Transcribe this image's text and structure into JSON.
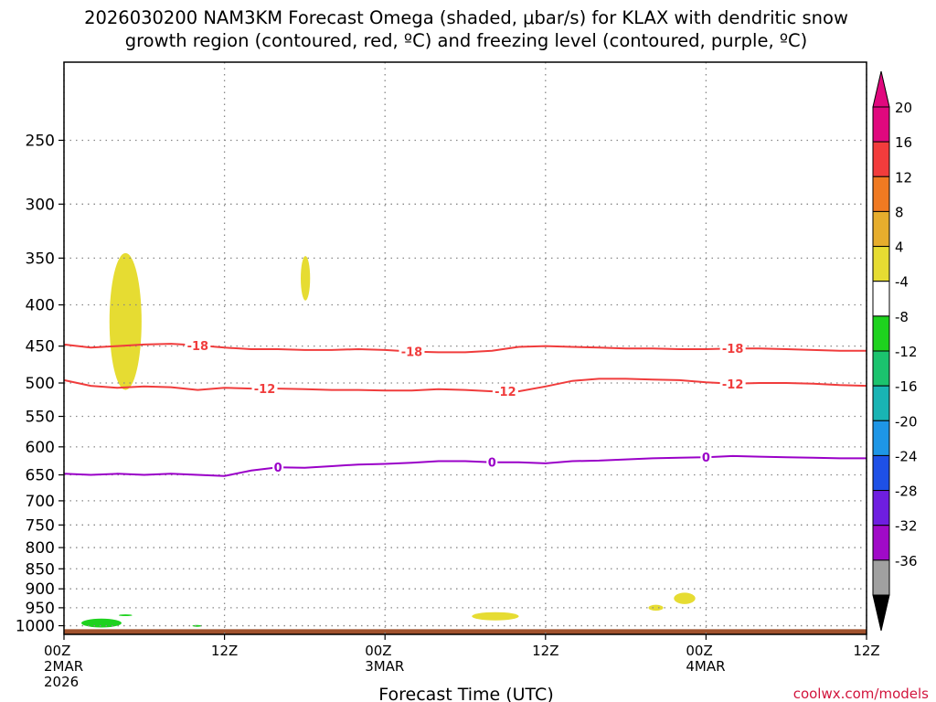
{
  "chart_data": {
    "type": "area",
    "title_line1": "2026030200 NAM3KM Forecast Omega (shaded, μbar/s) for KLAX with dendritic snow",
    "title_line2": "growth region (contoured, red, ºC) and freezing level (contoured, purple, ºC)",
    "xlabel": "Forecast Time (UTC)",
    "credit": "coolwx.com/models",
    "x_range_hours": [
      0,
      60
    ],
    "x_ticks": [
      {
        "hour": 0,
        "labels": [
          "00Z",
          "2MAR",
          "2026"
        ]
      },
      {
        "hour": 12,
        "labels": [
          "12Z"
        ]
      },
      {
        "hour": 24,
        "labels": [
          "00Z",
          "3MAR"
        ]
      },
      {
        "hour": 36,
        "labels": [
          "12Z"
        ]
      },
      {
        "hour": 48,
        "labels": [
          "00Z",
          "4MAR"
        ]
      },
      {
        "hour": 60,
        "labels": [
          "12Z"
        ]
      }
    ],
    "y_scale": "log",
    "y_range_hpa": [
      1025,
      200
    ],
    "y_ticks": [
      250,
      300,
      350,
      400,
      450,
      500,
      550,
      600,
      650,
      700,
      750,
      800,
      850,
      900,
      950,
      1000
    ],
    "grid": true,
    "colorbar": {
      "placement": "right",
      "levels": [
        {
          "label": "20",
          "color": "#e0087e"
        },
        {
          "label": "16",
          "color": "#f23c3c"
        },
        {
          "label": "12",
          "color": "#f07a22"
        },
        {
          "label": "8",
          "color": "#e6ad2d"
        },
        {
          "label": "4",
          "color": "#e6dc32"
        },
        {
          "label": "-4",
          "color": "#ffffff"
        },
        {
          "label": "-8",
          "color": "#1ed21e"
        },
        {
          "label": "-12",
          "color": "#1bc36e"
        },
        {
          "label": "-16",
          "color": "#19b4b4"
        },
        {
          "label": "-20",
          "color": "#1e96e6"
        },
        {
          "label": "-24",
          "color": "#1e50e6"
        },
        {
          "label": "-28",
          "color": "#6e1ee0"
        },
        {
          "label": "-32",
          "color": "#a00ac8"
        },
        {
          "label": "-36",
          "color": "#a0a0a0"
        }
      ],
      "top_arrow_color": "#e0087e",
      "bottom_arrow_color": "#000000"
    },
    "contours": [
      {
        "value": "-18",
        "color": "#f03c3c",
        "hours": [
          0,
          2,
          4,
          6,
          8,
          10,
          12,
          14,
          16,
          18,
          20,
          22,
          24,
          26,
          28,
          30,
          32,
          34,
          36,
          38,
          40,
          42,
          44,
          46,
          48,
          50,
          52,
          54,
          56,
          58,
          60
        ],
        "pressure": [
          448,
          452,
          450,
          448,
          447,
          449,
          452,
          454,
          454,
          455,
          455,
          454,
          455,
          457,
          458,
          458,
          456,
          451,
          450,
          451,
          452,
          453,
          453,
          454,
          454,
          453,
          453,
          454,
          455,
          456,
          456
        ],
        "label_hours": [
          10,
          26,
          50
        ]
      },
      {
        "value": "-12",
        "color": "#f03c3c",
        "hours": [
          0,
          2,
          4,
          6,
          8,
          10,
          12,
          14,
          16,
          18,
          20,
          22,
          24,
          26,
          28,
          30,
          32,
          34,
          36,
          38,
          40,
          42,
          44,
          46,
          48,
          50,
          52,
          54,
          56,
          58,
          60
        ],
        "pressure": [
          496,
          504,
          507,
          505,
          506,
          510,
          507,
          508,
          508,
          509,
          510,
          510,
          511,
          511,
          509,
          510,
          512,
          512,
          505,
          497,
          494,
          494,
          495,
          496,
          499,
          501,
          500,
          500,
          501,
          503,
          504
        ],
        "label_hours": [
          15,
          33,
          50
        ]
      },
      {
        "value": "0",
        "color": "#9a00c8",
        "hours": [
          0,
          2,
          4,
          6,
          8,
          10,
          12,
          14,
          16,
          18,
          20,
          22,
          24,
          26,
          28,
          30,
          32,
          34,
          36,
          38,
          40,
          42,
          44,
          46,
          48,
          50,
          52,
          54,
          56,
          58,
          60
        ],
        "pressure": [
          648,
          650,
          648,
          650,
          648,
          650,
          652,
          642,
          636,
          637,
          634,
          631,
          630,
          628,
          625,
          625,
          627,
          627,
          629,
          625,
          624,
          622,
          620,
          619,
          618,
          616,
          617,
          618,
          619,
          620,
          620
        ],
        "label_hours": [
          16,
          32,
          48
        ]
      }
    ],
    "shaded_regions": [
      {
        "level": "4 to 8",
        "color": "#e6dc32",
        "hours_span": [
          3.4,
          5.8
        ],
        "pressure_span": [
          345,
          510
        ]
      },
      {
        "level": "4 to 8",
        "color": "#e6dc32",
        "hours_span": [
          17.7,
          18.4
        ],
        "pressure_span": [
          348,
          395
        ]
      },
      {
        "level": "4 to 8",
        "color": "#e6dc32",
        "hours_span": [
          30.5,
          34
        ],
        "pressure_span": [
          962,
          985
        ]
      },
      {
        "level": "4 to 8",
        "color": "#e6dc32",
        "hours_span": [
          43.7,
          44.8
        ],
        "pressure_span": [
          942,
          958
        ]
      },
      {
        "level": "4 to 8",
        "color": "#e6dc32",
        "hours_span": [
          45.6,
          47.2
        ],
        "pressure_span": [
          910,
          940
        ]
      },
      {
        "level": "-4 to -8",
        "color": "#1ed21e",
        "hours_span": [
          1.3,
          4.3
        ],
        "pressure_span": [
          980,
          1005
        ]
      },
      {
        "level": "-4 to -8",
        "color": "#1ed21e",
        "hours_span": [
          4.1,
          5.1
        ],
        "pressure_span": [
          968,
          973
        ]
      },
      {
        "level": "-4 to -8",
        "color": "#1ed21e",
        "hours_span": [
          9.6,
          10.3
        ],
        "pressure_span": [
          998,
          1003
        ]
      }
    ],
    "terrain": {
      "color": "#a0522d",
      "top_pressure": 1010
    }
  }
}
